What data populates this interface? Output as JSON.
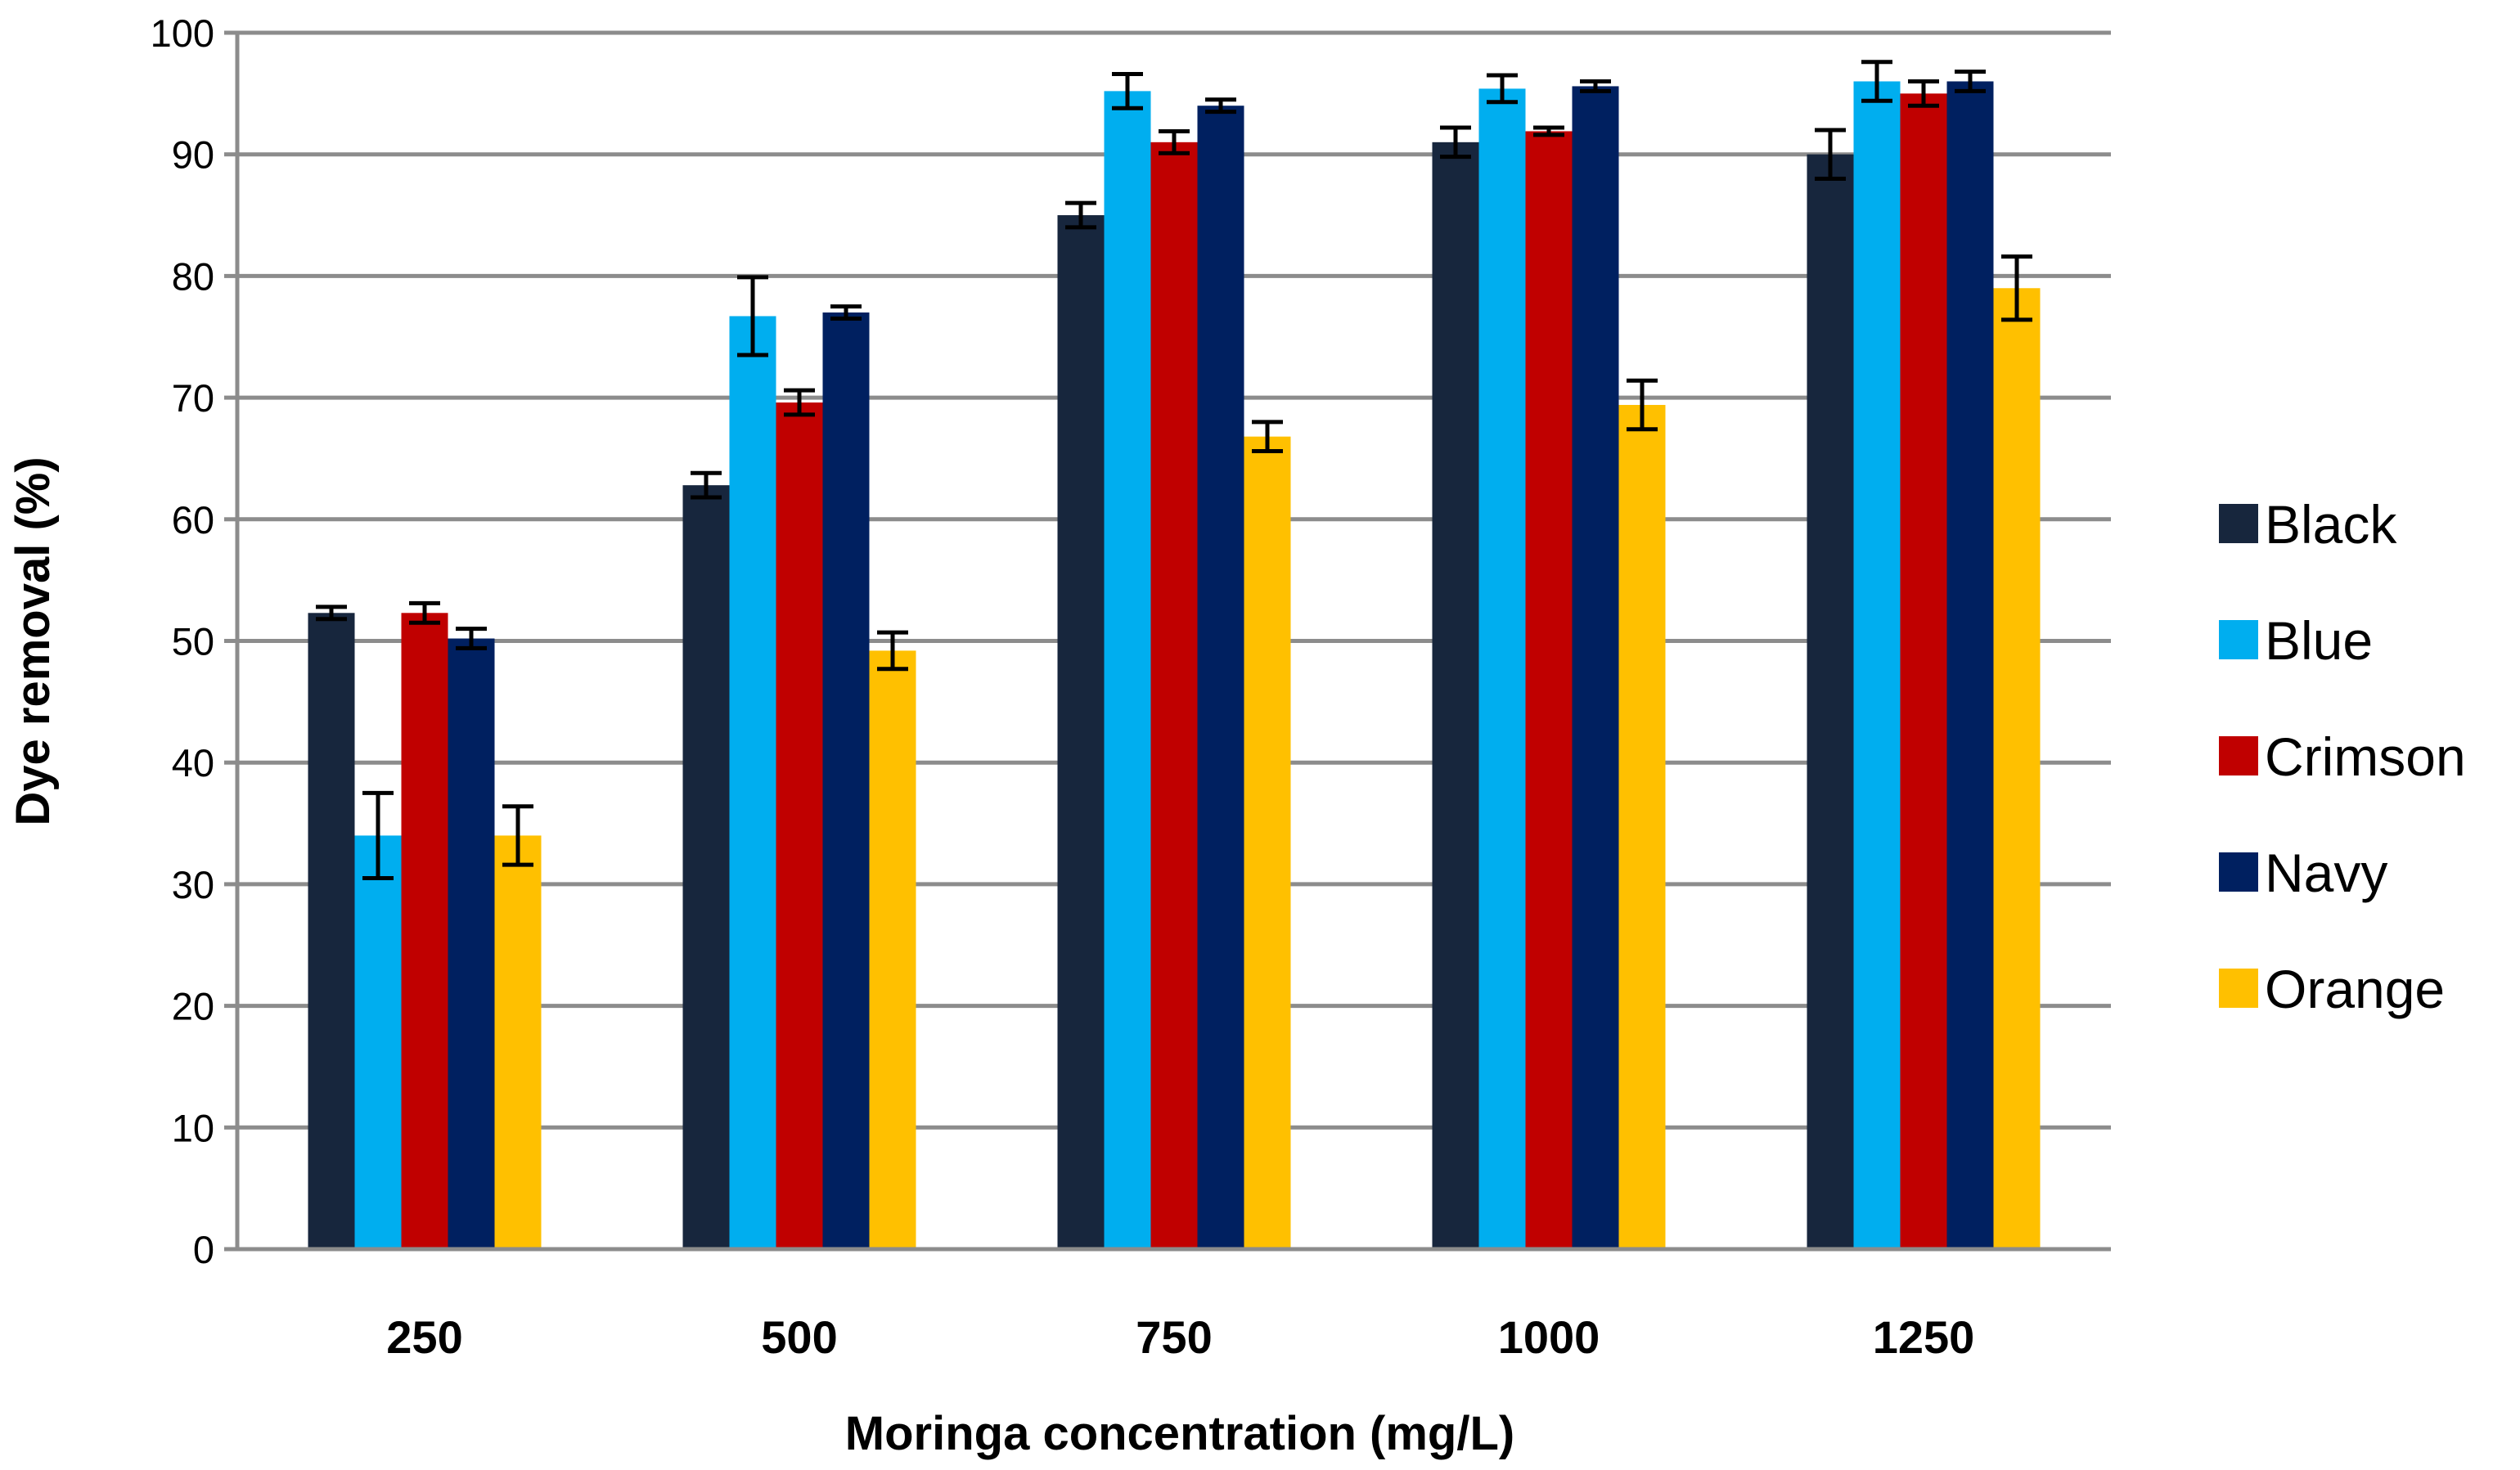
{
  "chart_data": {
    "type": "bar",
    "title": "",
    "xlabel": "Moringa concentration (mg/L)",
    "ylabel": "Dye removal (%)",
    "ylim": [
      0,
      100
    ],
    "yticks": [
      "0",
      "10",
      "20",
      "30",
      "40",
      "50",
      "60",
      "70",
      "80",
      "90",
      "100"
    ],
    "categories": [
      "250",
      "500",
      "750",
      "1000",
      "1250"
    ],
    "grid": true,
    "legend_position": "right",
    "series": [
      {
        "name": "Black",
        "color": "#17263d",
        "values": [
          52.3,
          62.8,
          85.0,
          91.0,
          90.0
        ],
        "errors": [
          0.5,
          1.0,
          1.0,
          1.2,
          2.0
        ]
      },
      {
        "name": "Blue",
        "color": "#00aeef",
        "values": [
          34.0,
          76.7,
          95.2,
          95.4,
          96.0
        ],
        "errors": [
          3.5,
          3.2,
          1.4,
          1.1,
          1.6
        ]
      },
      {
        "name": "Crimson",
        "color": "#c00000",
        "values": [
          52.3,
          69.6,
          91.0,
          91.9,
          95.0
        ],
        "errors": [
          0.8,
          1.0,
          0.9,
          0.3,
          1.0
        ]
      },
      {
        "name": "Navy",
        "color": "#002060",
        "values": [
          50.2,
          77.0,
          94.0,
          95.6,
          96.0
        ],
        "errors": [
          0.8,
          0.5,
          0.5,
          0.4,
          0.8
        ]
      },
      {
        "name": "Orange",
        "color": "#ffc000",
        "values": [
          34.0,
          49.2,
          66.8,
          69.4,
          79.0
        ],
        "errors": [
          2.4,
          1.5,
          1.2,
          2.0,
          2.6
        ]
      }
    ]
  }
}
